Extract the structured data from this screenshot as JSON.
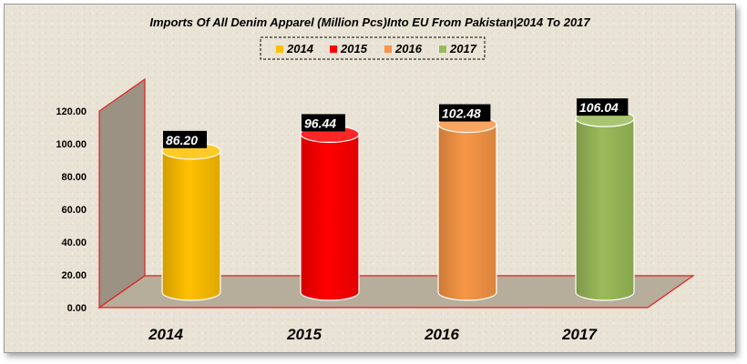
{
  "chart_data": {
    "type": "bar",
    "title": "Imports Of All Denim Apparel (Million Pcs)Into EU From Pakistan|2014 To 2017",
    "categories": [
      "2014",
      "2015",
      "2016",
      "2017"
    ],
    "values": [
      86.2,
      96.44,
      102.48,
      106.04
    ],
    "data_labels": [
      "86.20",
      "96.44",
      "102.48",
      "106.04"
    ],
    "series": [
      {
        "name": "2014",
        "color": "#FFC000"
      },
      {
        "name": "2015",
        "color": "#FF0000"
      },
      {
        "name": "2016",
        "color": "#F79646"
      },
      {
        "name": "2017",
        "color": "#9BBB59"
      }
    ],
    "ylim": [
      0,
      120
    ],
    "yticks": [
      "0.00",
      "20.00",
      "40.00",
      "60.00",
      "80.00",
      "100.00",
      "120.00"
    ],
    "grid": false,
    "legend_position": "top",
    "bar_shape": "cylinder",
    "wall_color": "#9B9283",
    "floor_color": "#B7AD9B",
    "edge_color": "#E02020"
  }
}
